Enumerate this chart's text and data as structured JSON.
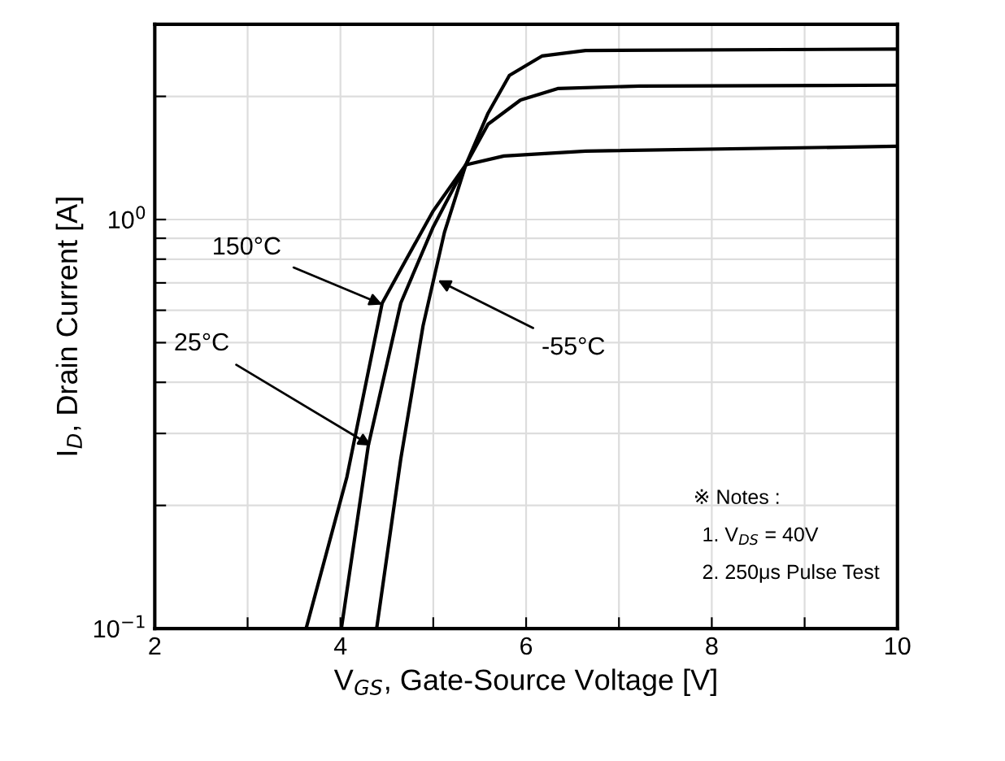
{
  "chart_data": {
    "type": "line",
    "xlabel": "V$_{GS}$, Gate-Source Voltage [V]",
    "ylabel": "I$_{D}$, Drain Current [A]",
    "log": "y",
    "xlim": [
      2,
      10
    ],
    "ylim": [
      0.1,
      3
    ],
    "xticks": [
      2,
      {
        "value": 3,
        "label": null
      },
      4,
      {
        "value": 5,
        "label": null
      },
      6,
      {
        "value": 7,
        "label": null
      },
      8,
      {
        "value": 9,
        "label": null
      },
      10
    ],
    "yticks": [
      {
        "value": 0.1,
        "label": "10$^{−1}$"
      },
      {
        "value": 0.2,
        "label": null
      },
      {
        "value": 0.3,
        "label": null
      },
      {
        "value": 0.4,
        "label": null
      },
      {
        "value": 0.5,
        "label": null
      },
      {
        "value": 0.6,
        "label": null
      },
      {
        "value": 0.7,
        "label": null
      },
      {
        "value": 0.8,
        "label": null
      },
      {
        "value": 0.9,
        "label": null
      },
      {
        "value": 1,
        "label": "10$^{0}$"
      },
      {
        "value": 2,
        "label": null
      }
    ],
    "grid": true,
    "marker": "none",
    "line_style": "solid",
    "series": [
      {
        "color": "#000000",
        "x": [
          3.63,
          4.07,
          4.45,
          4.71,
          5.0,
          5.35,
          5.76,
          6.64,
          10
        ],
        "values": [
          0.1,
          0.235,
          0.625,
          0.8,
          1.05,
          1.36,
          1.43,
          1.47,
          1.51
        ]
      },
      {
        "color": "#000000",
        "x": [
          4.01,
          4.3,
          4.65,
          5.0,
          5.35,
          5.59,
          5.94,
          6.34,
          7.22,
          10
        ],
        "values": [
          0.1,
          0.28,
          0.625,
          0.96,
          1.36,
          1.71,
          1.96,
          2.09,
          2.12,
          2.13
        ]
      },
      {
        "color": "#000000",
        "x": [
          4.39,
          4.65,
          4.89,
          5.12,
          5.35,
          5.59,
          5.82,
          6.17,
          6.64,
          10
        ],
        "values": [
          0.1,
          0.26,
          0.55,
          0.93,
          1.36,
          1.82,
          2.25,
          2.51,
          2.59,
          2.61
        ]
      }
    ],
    "annotations": [
      {
        "text": "150°C",
        "x": 4.45,
        "y": 0.62
      },
      {
        "text": "25°C",
        "x": 4.33,
        "y": 0.28
      },
      {
        "text": "-55°C",
        "x": 5.05,
        "y": 0.71
      },
      "※ Notes :",
      "1. V$_{DS}$ = 40V",
      "2. 250μs Pulse Test"
    ]
  }
}
